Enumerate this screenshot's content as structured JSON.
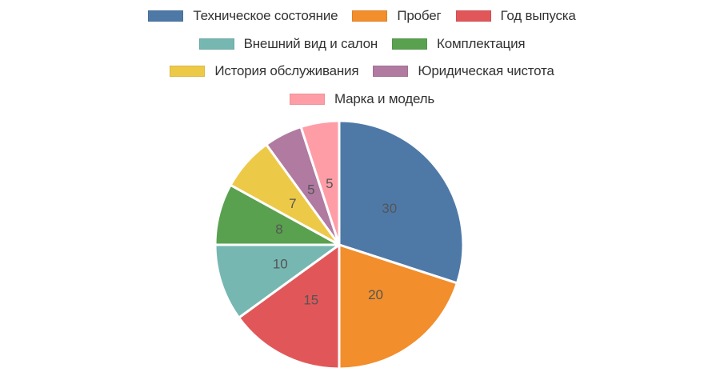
{
  "chart_data": {
    "type": "pie",
    "title": "",
    "categories": [
      "Техническое состояние",
      "Пробег",
      "Год выпуска",
      "Внешний вид и салон",
      "Комплектация",
      "История обслуживания",
      "Юридическая чистота",
      "Марка и модель"
    ],
    "values": [
      30,
      20,
      15,
      10,
      8,
      7,
      5,
      5
    ],
    "colors": [
      "#4e79a7",
      "#f28e2b",
      "#e15759",
      "#76b7b2",
      "#59a14f",
      "#edc948",
      "#b07aa1",
      "#ff9da7"
    ],
    "data_labels": [
      "30",
      "20",
      "15",
      "10",
      "8",
      "7",
      "5",
      "5"
    ],
    "legend_position": "top",
    "start_angle": "12 o'clock, clockwise"
  },
  "legend": {
    "rows": [
      [
        {
          "label": "Техническое состояние",
          "color": "#4e79a7"
        },
        {
          "label": "Пробег",
          "color": "#f28e2b"
        },
        {
          "label": "Год выпуска",
          "color": "#e15759"
        }
      ],
      [
        {
          "label": "Внешний вид и салон",
          "color": "#76b7b2"
        },
        {
          "label": "Комплектация",
          "color": "#59a14f"
        }
      ],
      [
        {
          "label": "История обслуживания",
          "color": "#edc948"
        },
        {
          "label": "Юридическая чистота",
          "color": "#b07aa1"
        }
      ],
      [
        {
          "label": "Марка и модель",
          "color": "#ff9da7"
        }
      ]
    ]
  }
}
